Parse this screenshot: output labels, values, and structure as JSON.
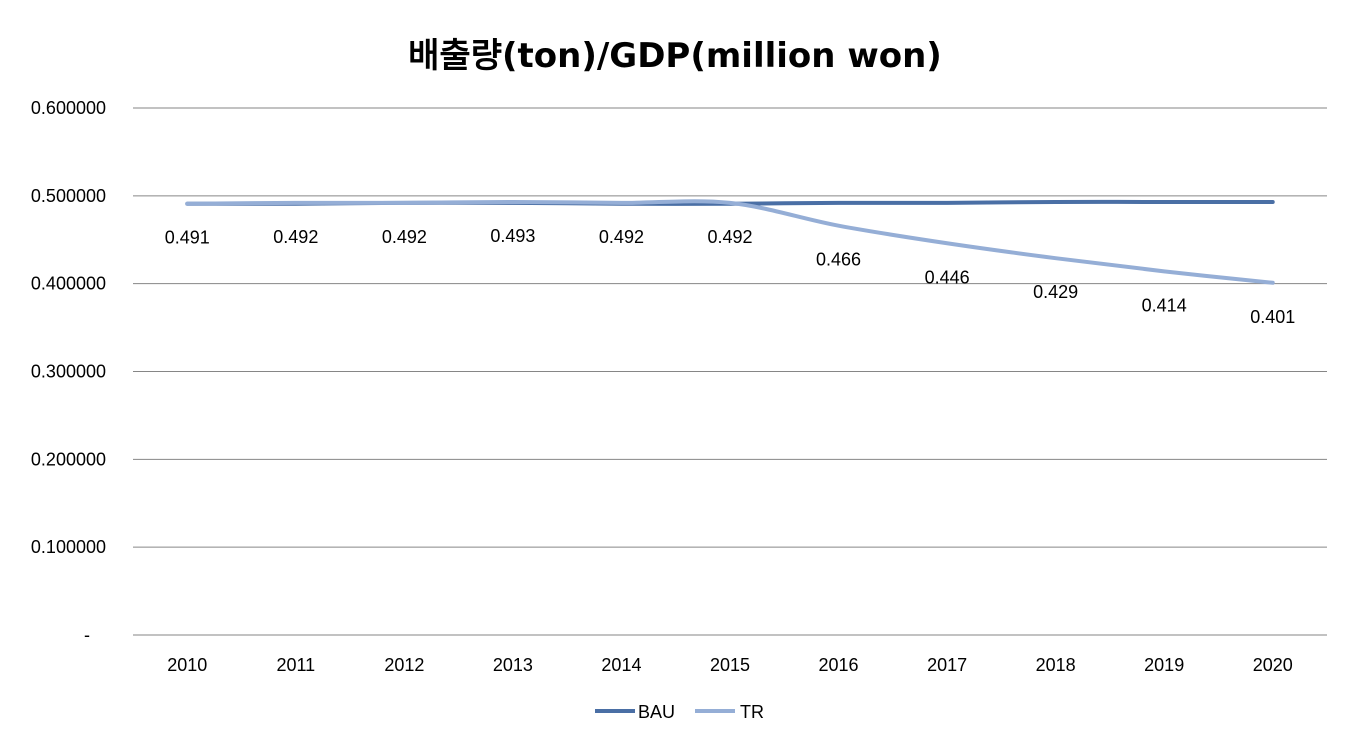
{
  "chart_data": {
    "type": "line",
    "title": "배출량(ton)/GDP(million won)",
    "categories": [
      "2010",
      "2011",
      "2012",
      "2013",
      "2014",
      "2015",
      "2016",
      "2017",
      "2018",
      "2019",
      "2020"
    ],
    "series": [
      {
        "name": "BAU",
        "color": "#4a6fa5",
        "values": [
          0.491,
          0.491,
          0.492,
          0.492,
          0.491,
          0.491,
          0.492,
          0.492,
          0.493,
          0.493,
          0.493
        ]
      },
      {
        "name": "TR",
        "color": "#95aed6",
        "values": [
          0.491,
          0.492,
          0.492,
          0.493,
          0.492,
          0.492,
          0.466,
          0.446,
          0.429,
          0.414,
          0.401
        ]
      }
    ],
    "data_labels": [
      "0.491",
      "0.492",
      "0.492",
      "0.493",
      "0.492",
      "0.492",
      "0.466",
      "0.446",
      "0.429",
      "0.414",
      "0.401"
    ],
    "y_ticks": [
      "-",
      "0.100000",
      "0.200000",
      "0.300000",
      "0.400000",
      "0.500000",
      "0.600000"
    ],
    "ylim": [
      0,
      0.6
    ],
    "grid": true,
    "legend_position": "bottom",
    "gridline_color": "#868686"
  }
}
